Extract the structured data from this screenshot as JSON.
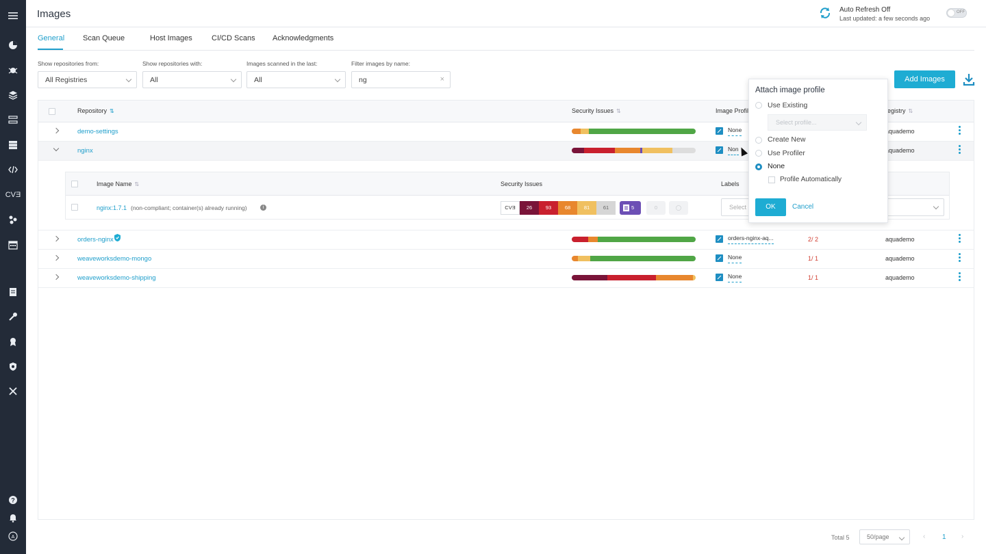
{
  "sidebar": {
    "icons": [
      "menu-icon",
      "dashboard-icon",
      "bug-icon",
      "layers-icon",
      "transfer-icon",
      "server-icon",
      "code-icon",
      "cve-icon",
      "graph-icon",
      "calendar-icon",
      "policy-icon",
      "wrench-icon",
      "ribbon-icon",
      "shield-icon",
      "tools-icon",
      "help-icon",
      "bell-icon",
      "user-icon"
    ],
    "cve_text": "CVƎ"
  },
  "header": {
    "title": "Images",
    "refresh_title": "Auto Refresh Off",
    "refresh_sub": "Last updated: a few seconds ago",
    "toggle_text": "OFF",
    "accent": "#1e9ecb"
  },
  "tabs": [
    "General",
    "Scan Queue",
    "Host Images",
    "CI/CD Scans",
    "Acknowledgments"
  ],
  "filters": {
    "labels": [
      "Show repositories from:",
      "Show repositories with:",
      "Images scanned in the last:",
      "Filter images by name:"
    ],
    "values": [
      "All Registries",
      "All",
      "All",
      "ng"
    ],
    "clear": "×"
  },
  "actions": {
    "add_images": "Add Images"
  },
  "table": {
    "headers": [
      "Repository",
      "Security Issues",
      "Image Profil",
      "egistry"
    ],
    "rows": [
      {
        "repo": "demo-settings",
        "profile": "None",
        "count": "",
        "registry": "aquademo",
        "bar": [
          [
            "#e8872e",
            7
          ],
          [
            "#f0c060",
            7
          ],
          [
            "#50a646",
            86
          ]
        ]
      },
      {
        "repo": "nginx",
        "profile": "Non",
        "count": "",
        "registry": "aquademo",
        "bar": [
          [
            "#7a1439",
            10
          ],
          [
            "#c9202e",
            25
          ],
          [
            "#e8872e",
            20
          ],
          [
            "#6a4db5",
            2
          ],
          [
            "#f0c060",
            24
          ],
          [
            "#dddddd",
            19
          ]
        ]
      },
      {
        "repo": "orders-nginx",
        "profile": "orders-nginx-aq...",
        "count": "2/ 2",
        "registry": "aquademo",
        "bar": [
          [
            "#c9202e",
            13
          ],
          [
            "#e8872e",
            8
          ],
          [
            "#50a646",
            79
          ]
        ]
      },
      {
        "repo": "weaveworksdemo-mongo",
        "profile": "None",
        "count": "1/ 1",
        "registry": "aquademo",
        "bar": [
          [
            "#e8872e",
            5
          ],
          [
            "#f0c060",
            10
          ],
          [
            "#50a646",
            85
          ]
        ]
      },
      {
        "repo": "weaveworksdemo-shipping",
        "profile": "None",
        "count": "1/ 1",
        "registry": "aquademo",
        "bar": [
          [
            "#7a1439",
            29
          ],
          [
            "#c9202e",
            39
          ],
          [
            "#e8872e",
            30
          ],
          [
            "#f0c060",
            2
          ]
        ]
      }
    ]
  },
  "sub_table": {
    "headers": [
      "Image Name",
      "Security Issues",
      "Labels"
    ],
    "image_name": "nginx:1.7.1",
    "image_note": "(non-compliant; container(s) already running)",
    "cve_label": "CVƎ",
    "severities": [
      {
        "value": "26",
        "color": "#7a1439"
      },
      {
        "value": "93",
        "color": "#c9202e"
      },
      {
        "value": "68",
        "color": "#e8872e"
      },
      {
        "value": "81",
        "color": "#f0c060"
      },
      {
        "value": "61",
        "color": "#d6d6d6"
      }
    ],
    "malware": "5",
    "sensitive": "0",
    "labels_placeholder": "Select"
  },
  "popup": {
    "title": "Attach image profile",
    "options": [
      "Use Existing",
      "Create New",
      "Use Profiler",
      "None"
    ],
    "selected": "None",
    "select_placeholder": "Select profile...",
    "auto_label": "Profile Automatically",
    "ok": "OK",
    "cancel": "Cancel"
  },
  "footer": {
    "total": "Total 5",
    "page_size": "50/page",
    "page": "1",
    "prev": "‹",
    "next": "›"
  }
}
